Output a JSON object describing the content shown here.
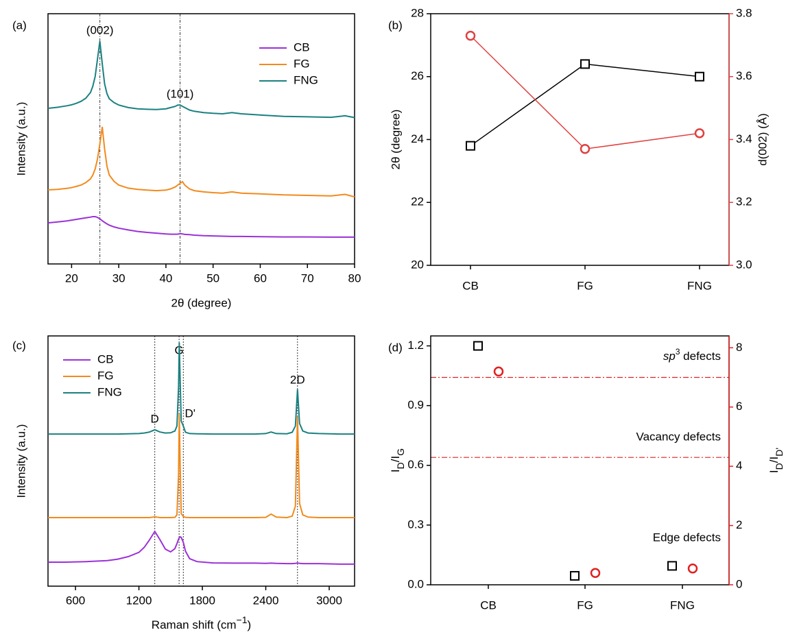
{
  "chart_data": [
    {
      "type": "line",
      "panel_label": "(a)",
      "xlabel": "2θ (degree)",
      "ylabel": "Intensity (a.u.)",
      "x": [
        15,
        17,
        19,
        20,
        21,
        22,
        23,
        24,
        24.5,
        25,
        25.5,
        26,
        26.5,
        27,
        27.5,
        28,
        29,
        30,
        32,
        34,
        36,
        38,
        40,
        41,
        42,
        42.5,
        43,
        43.5,
        44,
        45,
        46,
        48,
        50,
        52,
        54,
        56,
        60,
        65,
        70,
        75,
        78,
        80
      ],
      "xlim": [
        15,
        80
      ],
      "xticks": [
        20,
        30,
        40,
        50,
        60,
        70,
        80
      ],
      "ylim": [
        0,
        100
      ],
      "legend": "upper right",
      "series": [
        {
          "name": "CB",
          "color": "#9b30d9",
          "values": [
            16.4,
            16.8,
            17.2,
            17.5,
            17.8,
            18.1,
            18.4,
            18.7,
            18.9,
            18.9,
            18.6,
            18.0,
            17.3,
            16.6,
            16.0,
            15.5,
            14.8,
            14.3,
            13.6,
            13.0,
            12.6,
            12.3,
            12.0,
            11.9,
            11.9,
            11.9,
            12.1,
            12.0,
            11.8,
            11.7,
            11.5,
            11.3,
            11.2,
            11.1,
            11.0,
            11.0,
            10.9,
            10.8,
            10.8,
            10.7,
            10.7,
            10.7
          ]
        },
        {
          "name": "FG",
          "color": "#f28a1c",
          "values": [
            29.6,
            29.8,
            30.2,
            30.5,
            31,
            31.5,
            32.5,
            34,
            35.5,
            38,
            42,
            48,
            54.8,
            46,
            39,
            35.5,
            33,
            31.5,
            30.3,
            29.8,
            29.5,
            29.3,
            29.5,
            30,
            30.8,
            31.5,
            32.2,
            32.9,
            31.5,
            30,
            29.3,
            28.8,
            28.5,
            28.3,
            28.8,
            28.3,
            28,
            27.6,
            27.4,
            27.2,
            27.8,
            26.8
          ]
        },
        {
          "name": "FNG",
          "color": "#1b8080",
          "values": [
            62.2,
            62.6,
            63.2,
            63.6,
            64.2,
            65.0,
            66.2,
            68.5,
            71,
            75,
            82,
            89,
            80,
            72,
            68,
            66,
            64.5,
            63.5,
            62.5,
            62,
            61.8,
            61.7,
            62,
            62.5,
            63,
            63.5,
            63.5,
            63,
            62.5,
            61.5,
            61,
            60.5,
            60.2,
            60,
            60.5,
            60,
            59.5,
            59,
            58.8,
            58.6,
            59.2,
            58.5
          ]
        }
      ],
      "vlines": [
        {
          "value": 26,
          "label": "(002)"
        },
        {
          "value": 43,
          "label": "(101)"
        }
      ]
    },
    {
      "type": "line",
      "panel_label": "(b)",
      "categories": [
        "CB",
        "FG",
        "FNG"
      ],
      "ylabel": "2θ (degree)",
      "y2label": "d(002) (Å)",
      "ylim": [
        20,
        28
      ],
      "yticks": [
        20,
        22,
        24,
        26,
        28
      ],
      "y2lim": [
        3.0,
        3.8
      ],
      "y2ticks": [
        {
          "value": 3.0,
          "label": "3.0"
        },
        3.2,
        3.4,
        3.6,
        3.8
      ],
      "y2color": "#e04040",
      "series": [
        {
          "color": "#000000",
          "marker": "square",
          "values": [
            23.8,
            26.4,
            26.0
          ]
        },
        {
          "color": "#e04040",
          "marker": "circle",
          "axis": "y2",
          "values": [
            3.73,
            3.37,
            3.42
          ]
        }
      ]
    },
    {
      "type": "line",
      "panel_label": "(c)",
      "xlabel": [
        "Raman shift (cm",
        "−1",
        ")"
      ],
      "ylabel": "Intensity (a.u.)",
      "x": [
        340,
        500,
        700,
        900,
        1000,
        1100,
        1200,
        1250,
        1300,
        1350,
        1400,
        1450,
        1500,
        1540,
        1560,
        1575,
        1582,
        1590,
        1600,
        1620,
        1640,
        1680,
        1750,
        1900,
        2100,
        2300,
        2400,
        2450,
        2500,
        2600,
        2650,
        2680,
        2700,
        2720,
        2750,
        2800,
        2900,
        3000,
        3100,
        3240
      ],
      "xlim": [
        340,
        3240
      ],
      "xticks": [
        600,
        1200,
        1800,
        2400,
        3000
      ],
      "ylim": [
        0,
        100
      ],
      "legend": "upper left",
      "series": [
        {
          "name": "CB",
          "color": "#9b30d9",
          "values": [
            9.6,
            9.6,
            9.8,
            10.2,
            10.8,
            11.8,
            13.5,
            15.5,
            18.5,
            21.9,
            18.5,
            14.8,
            13.7,
            15,
            17,
            18.8,
            19.4,
            19.7,
            19.5,
            17.5,
            14,
            11,
            9.8,
            9.3,
            9.2,
            9.2,
            9.1,
            9.2,
            9.1,
            9.0,
            9.0,
            9.1,
            9.3,
            9.1,
            9.0,
            9.0,
            9.0,
            8.9,
            8.8,
            8.8
          ]
        },
        {
          "name": "FG",
          "color": "#f28a1c",
          "values": [
            27.4,
            27.4,
            27.4,
            27.4,
            27.4,
            27.4,
            27.4,
            27.4,
            27.4,
            27.7,
            27.4,
            27.4,
            27.4,
            27.5,
            28.5,
            45,
            68.8,
            48,
            29,
            27.8,
            27.5,
            27.4,
            27.4,
            27.4,
            27.4,
            27.4,
            27.5,
            28.8,
            27.6,
            27.4,
            28,
            32,
            67.7,
            33,
            28.5,
            27.6,
            27.4,
            27.4,
            27.4,
            27.4
          ]
        },
        {
          "name": "FNG",
          "color": "#1b8080",
          "values": [
            60.8,
            60.8,
            60.8,
            60.8,
            60.8,
            60.9,
            61,
            61.2,
            61.6,
            62.5,
            61.6,
            61.2,
            61.3,
            62,
            64,
            80,
            97.3,
            82,
            66,
            64,
            61.5,
            61,
            60.9,
            60.8,
            60.8,
            60.8,
            61,
            61.6,
            61,
            60.9,
            61.5,
            64,
            78.6,
            65,
            62,
            61.2,
            61,
            60.9,
            60.8,
            60.8
          ]
        }
      ],
      "vlines": [
        {
          "value": 1350,
          "label": "D"
        },
        {
          "value": 1580,
          "label": "G"
        },
        {
          "value": 1620,
          "label": "D'"
        },
        {
          "value": 2700,
          "label": "2D"
        }
      ]
    },
    {
      "type": "scatter",
      "panel_label": "(d)",
      "categories": [
        "CB",
        "FG",
        "FNG"
      ],
      "ylabel": [
        "I",
        "D",
        "/I",
        "G"
      ],
      "y2label": [
        "I",
        "D",
        "/I",
        "D'"
      ],
      "ylim": [
        0,
        1.25
      ],
      "yticks": [
        {
          "value": 0,
          "label": "0.0"
        },
        0.3,
        0.6,
        0.9,
        1.2
      ],
      "y2lim": [
        0,
        8.4
      ],
      "y2ticks": [
        0,
        2,
        4,
        6,
        8
      ],
      "y2color": "#e02020",
      "series": [
        {
          "color": "#000000",
          "marker": "square",
          "values": [
            1.2,
            0.045,
            0.095
          ]
        },
        {
          "color": "#e02020",
          "marker": "circle",
          "axis": "y2",
          "values": [
            7.2,
            0.4,
            0.55
          ]
        }
      ],
      "hlines": [
        {
          "value": 7.0,
          "axis": "y2"
        },
        {
          "value": 4.3,
          "axis": "y2"
        }
      ],
      "annotations": [
        {
          "text": [
            "sp",
            "3",
            " defects"
          ]
        },
        {
          "text": "Vacancy defects"
        },
        {
          "text": "Edge defects"
        }
      ]
    }
  ]
}
